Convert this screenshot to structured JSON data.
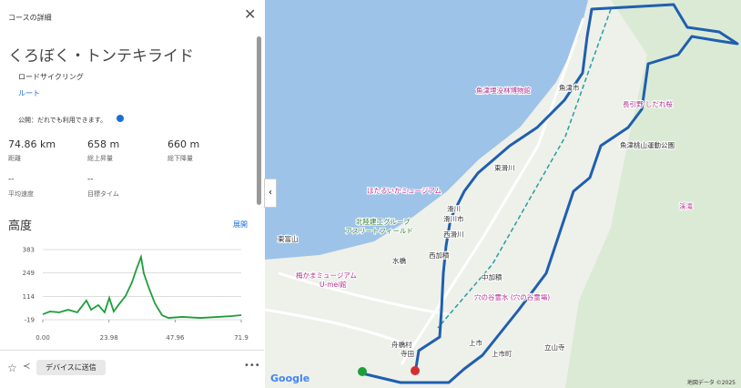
{
  "panel": {
    "header": "コースの詳細",
    "title": "くろぼく・トンテキライド",
    "activity": "ロードサイクリング",
    "route_link": "ルート",
    "visibility": "公開：だれでも利用できます。",
    "stats": [
      {
        "value": "74.86 km",
        "label": "距離"
      },
      {
        "value": "658 m",
        "label": "総上昇量"
      },
      {
        "value": "660 m",
        "label": "総下降量"
      },
      {
        "value": "--",
        "label": "平均速度"
      },
      {
        "value": "--",
        "label": "目標タイム"
      }
    ],
    "expand": "展開",
    "send_button": "デバイスに送信"
  },
  "elevation_chart": {
    "type": "line",
    "title": "高度",
    "color": "#1e9e3a",
    "x": [
      0,
      2.6,
      5.9,
      9.2,
      12.5,
      15.8,
      17.5,
      20.1,
      22.4,
      24.1,
      25.7,
      27.4,
      30.0,
      32.3,
      34.0,
      35.6,
      36.6,
      38.3,
      40.6,
      43.2,
      45.5,
      50.5,
      57.1,
      63.7,
      68.6,
      71.9
    ],
    "values": [
      12,
      28,
      23,
      38,
      23,
      91,
      38,
      65,
      23,
      106,
      28,
      65,
      117,
      195,
      273,
      341,
      247,
      169,
      75,
      7,
      -9,
      -3,
      -9,
      -3,
      2,
      7
    ],
    "xlim": [
      0,
      71.9
    ],
    "ylim": [
      -19,
      383
    ],
    "xticks": [
      {
        "value": 0,
        "label": "0.00"
      },
      23.98,
      47.96,
      71.9
    ],
    "yticks": [
      383,
      249,
      114,
      -19
    ],
    "grid": true
  },
  "map": {
    "labels": [
      "魚津市",
      "魚津埋没林博物館",
      "長引野 しだれ桜",
      "魚津桃山運動公園",
      "東滑川",
      "ほたるいかミュージアム",
      "滑川",
      "滑川市",
      "西滑川",
      "北陸建工グループ",
      "アスリートフィールド",
      "東富山",
      "水橋",
      "西加積",
      "中加積",
      "梅かまミュージアム",
      "U-mei館",
      "穴の谷霊水 (穴の谷霊場)",
      "上市",
      "上市町",
      "舟橋村",
      "寺田",
      "立山寺",
      "渓滝"
    ],
    "attribution": "地図データ ©2025",
    "logo": "Google"
  }
}
